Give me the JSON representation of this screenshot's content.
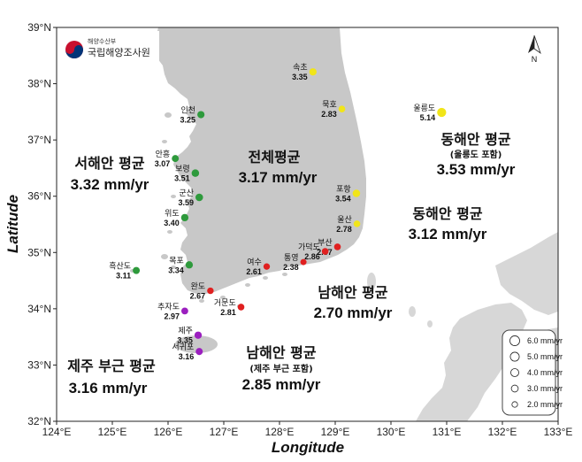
{
  "logo": {
    "ministry": "해양수산부",
    "agency": "국립해양조사원"
  },
  "axes": {
    "xlabel": "Longitude",
    "ylabel": "Latitude",
    "x_ticks": [
      "124°E",
      "125°E",
      "126°E",
      "127°E",
      "128°E",
      "129°E",
      "130°E",
      "131°E",
      "132°E",
      "133°E"
    ],
    "y_ticks": [
      "39°N",
      "38°N",
      "37°N",
      "36°N",
      "35°N",
      "34°N",
      "33°N",
      "32°N"
    ],
    "x_range": [
      124,
      133
    ],
    "y_range": [
      32,
      39
    ]
  },
  "north_arrow": {
    "label": "N"
  },
  "regions": {
    "overall": {
      "title": "전체평균",
      "rate": "3.17 mm/yr"
    },
    "west": {
      "title": "서해안 평균",
      "rate": "3.32 mm/yr"
    },
    "east_incl": {
      "title": "동해안 평균",
      "sub": "(울릉도 포함)",
      "rate": "3.53 mm/yr"
    },
    "east": {
      "title": "동해안 평균",
      "rate": "3.12 mm/yr"
    },
    "south": {
      "title": "남해안 평균",
      "rate": "2.70 mm/yr"
    },
    "south_incl": {
      "title": "남해안 평균",
      "sub": "(제주 부근 포함)",
      "rate": "2.85 mm/yr"
    },
    "jeju": {
      "title": "제주 부근 평균",
      "rate": "3.16 mm/yr"
    }
  },
  "colors": {
    "west": "#2e9a3c",
    "east": "#f1e519",
    "south": "#e02020",
    "jeju": "#9b1fbf",
    "land_korea": "#c8c8c8",
    "land_other": "#d7d7d7",
    "sea": "#ffffff"
  },
  "stations": [
    {
      "name": "속초",
      "value": "3.35",
      "lon": 128.6,
      "lat": 38.21,
      "group": "east"
    },
    {
      "name": "묵호",
      "value": "2.83",
      "lon": 129.12,
      "lat": 37.55,
      "group": "east"
    },
    {
      "name": "울릉도",
      "value": "5.14",
      "lon": 130.91,
      "lat": 37.49,
      "group": "east"
    },
    {
      "name": "포항",
      "value": "3.54",
      "lon": 129.38,
      "lat": 36.05,
      "group": "east"
    },
    {
      "name": "울산",
      "value": "2.78",
      "lon": 129.39,
      "lat": 35.51,
      "group": "east"
    },
    {
      "name": "부산",
      "value": "2.87",
      "lon": 129.04,
      "lat": 35.1,
      "group": "south"
    },
    {
      "name": "가덕도",
      "value": "2.86",
      "lon": 128.82,
      "lat": 35.02,
      "group": "south"
    },
    {
      "name": "통영",
      "value": "2.38",
      "lon": 128.43,
      "lat": 34.83,
      "group": "south"
    },
    {
      "name": "여수",
      "value": "2.61",
      "lon": 127.77,
      "lat": 34.75,
      "group": "south"
    },
    {
      "name": "거문도",
      "value": "2.81",
      "lon": 127.31,
      "lat": 34.03,
      "group": "south"
    },
    {
      "name": "완도",
      "value": "2.67",
      "lon": 126.76,
      "lat": 34.32,
      "group": "south"
    },
    {
      "name": "인천",
      "value": "3.25",
      "lon": 126.59,
      "lat": 37.45,
      "group": "west"
    },
    {
      "name": "안흥",
      "value": "3.07",
      "lon": 126.13,
      "lat": 36.67,
      "group": "west"
    },
    {
      "name": "보령",
      "value": "3.51",
      "lon": 126.49,
      "lat": 36.41,
      "group": "west"
    },
    {
      "name": "군산",
      "value": "3.59",
      "lon": 126.56,
      "lat": 35.98,
      "group": "west"
    },
    {
      "name": "위도",
      "value": "3.40",
      "lon": 126.3,
      "lat": 35.62,
      "group": "west"
    },
    {
      "name": "목포",
      "value": "3.34",
      "lon": 126.38,
      "lat": 34.78,
      "group": "west"
    },
    {
      "name": "흑산도",
      "value": "3.11",
      "lon": 125.43,
      "lat": 34.68,
      "group": "west"
    },
    {
      "name": "추자도",
      "value": "2.97",
      "lon": 126.3,
      "lat": 33.96,
      "group": "jeju"
    },
    {
      "name": "제주",
      "value": "3.35",
      "lon": 126.54,
      "lat": 33.53,
      "group": "jeju"
    },
    {
      "name": "서귀포",
      "value": "3.16",
      "lon": 126.56,
      "lat": 33.24,
      "group": "jeju"
    }
  ],
  "legend": {
    "items": [
      {
        "label": "6.0 mm/yr",
        "value": 6.0
      },
      {
        "label": "5.0 mm/yr",
        "value": 5.0
      },
      {
        "label": "4.0 mm/yr",
        "value": 4.0
      },
      {
        "label": "3.0 mm/yr",
        "value": 3.0
      },
      {
        "label": "2.0 mm/yr",
        "value": 2.0
      }
    ]
  }
}
